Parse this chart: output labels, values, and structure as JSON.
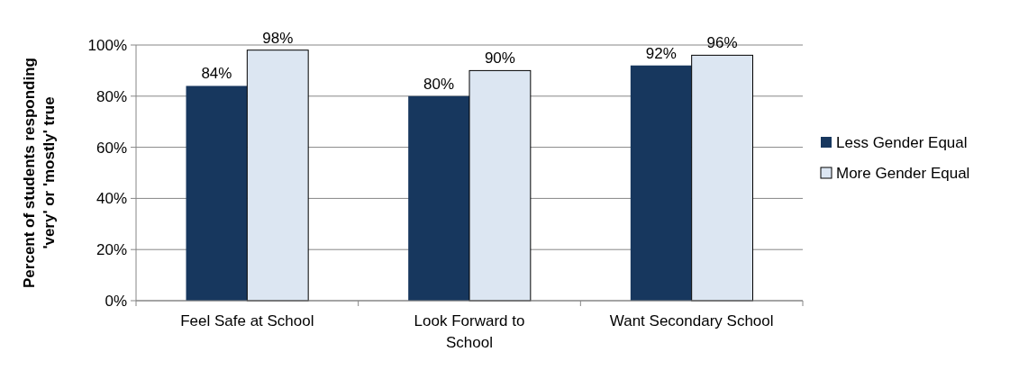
{
  "chart_data": {
    "type": "bar",
    "ylabel": "Percent of students responding 'very' or 'mostly' true",
    "categories": [
      "Feel Safe at School",
      "Look Forward to School",
      "Want Secondary School"
    ],
    "series": [
      {
        "name": "Less Gender Equal",
        "color": "#17375e",
        "values": [
          84,
          80,
          92
        ],
        "value_labels": [
          "84%",
          "80%",
          "92%"
        ]
      },
      {
        "name": "More Gender Equal",
        "color": "#dce6f2",
        "values": [
          98,
          90,
          96
        ],
        "value_labels": [
          "98%",
          "90%",
          "96%"
        ]
      }
    ],
    "ylim": [
      0,
      100
    ],
    "yticks": [
      {
        "value": 0,
        "label": "0%"
      },
      {
        "value": 20,
        "label": "20%"
      },
      {
        "value": 40,
        "label": "40%"
      },
      {
        "value": 60,
        "label": "60%"
      },
      {
        "value": 80,
        "label": "80%"
      },
      {
        "value": 100,
        "label": "100%"
      }
    ],
    "grid": "y",
    "legend": "right"
  }
}
